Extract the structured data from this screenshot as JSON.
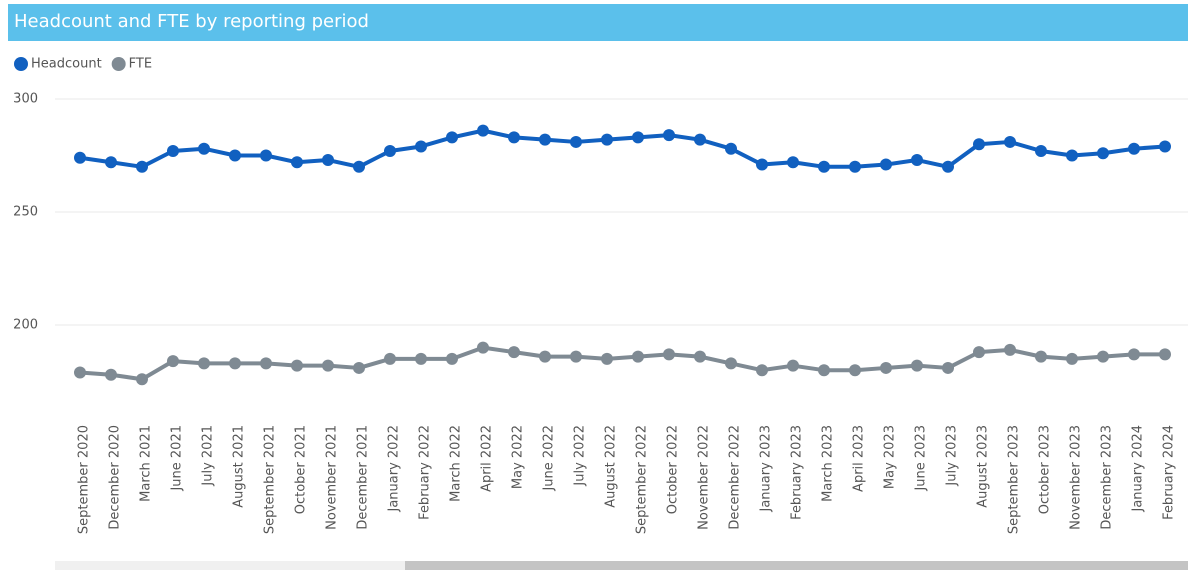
{
  "chart_data": {
    "type": "line",
    "title": "Headcount and FTE by reporting period",
    "categories": [
      "September 2020",
      "December 2020",
      "March 2021",
      "June 2021",
      "July 2021",
      "August 2021",
      "September 2021",
      "October 2021",
      "November 2021",
      "December 2021",
      "January 2022",
      "February 2022",
      "March 2022",
      "April 2022",
      "May 2022",
      "June 2022",
      "July 2022",
      "August 2022",
      "September 2022",
      "October 2022",
      "November 2022",
      "December 2022",
      "January 2023",
      "February 2023",
      "March 2023",
      "April 2023",
      "May 2023",
      "June 2023",
      "July 2023",
      "August 2023",
      "September 2023",
      "October 2023",
      "November 2023",
      "December 2023",
      "January 2024",
      "February 2024"
    ],
    "series": [
      {
        "name": "Headcount",
        "color": "#1160c0",
        "values": [
          274,
          272,
          270,
          277,
          278,
          275,
          275,
          272,
          273,
          270,
          277,
          279,
          283,
          286,
          283,
          282,
          281,
          282,
          283,
          284,
          282,
          278,
          271,
          272,
          270,
          270,
          271,
          273,
          270,
          280,
          281,
          277,
          275,
          276,
          278,
          279
        ]
      },
      {
        "name": "FTE",
        "color": "#7f8a93",
        "values": [
          179,
          178,
          176,
          184,
          183,
          183,
          183,
          182,
          182,
          181,
          185,
          185,
          185,
          190,
          188,
          186,
          186,
          185,
          186,
          187,
          186,
          183,
          180,
          182,
          180,
          180,
          181,
          182,
          181,
          188,
          189,
          186,
          185,
          186,
          187,
          187
        ]
      }
    ],
    "ylim": [
      165,
      300
    ],
    "yticks": [
      200,
      250,
      300
    ],
    "grid": true,
    "legend": "top-left"
  }
}
